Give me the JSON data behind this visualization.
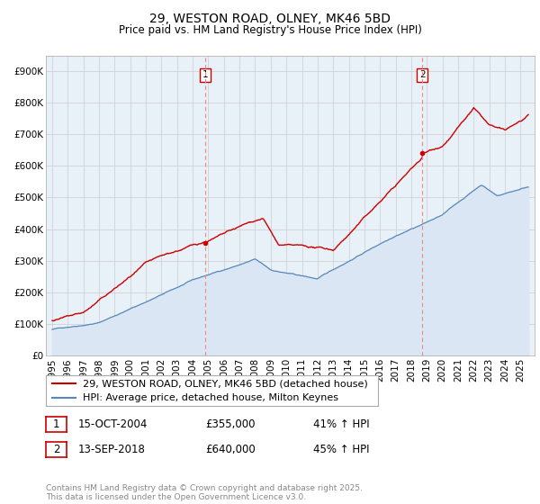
{
  "title": "29, WESTON ROAD, OLNEY, MK46 5BD",
  "subtitle": "Price paid vs. HM Land Registry's House Price Index (HPI)",
  "yticks": [
    0,
    100000,
    200000,
    300000,
    400000,
    500000,
    600000,
    700000,
    800000,
    900000
  ],
  "ytick_labels": [
    "£0",
    "£100K",
    "£200K",
    "£300K",
    "£400K",
    "£500K",
    "£600K",
    "£700K",
    "£800K",
    "£900K"
  ],
  "ylim": [
    0,
    950000
  ],
  "xlim_start": 1994.6,
  "xlim_end": 2025.9,
  "sale1_year": 2004.79,
  "sale1_price": 355000,
  "sale1_label": "1",
  "sale2_year": 2018.71,
  "sale2_price": 640000,
  "sale2_label": "2",
  "line_color_red": "#cc0000",
  "line_color_blue": "#5588bb",
  "fill_color_blue": "#dae6f3",
  "annotation_box_color": "#cc0000",
  "vline_color": "#ee8888",
  "grid_color": "#cccccc",
  "background_color": "#ffffff",
  "chart_bg_color": "#e8f0f8",
  "legend_label_red": "29, WESTON ROAD, OLNEY, MK46 5BD (detached house)",
  "legend_label_blue": "HPI: Average price, detached house, Milton Keynes",
  "sale1_date": "15-OCT-2004",
  "sale1_price_str": "£355,000",
  "sale1_hpi": "41% ↑ HPI",
  "sale2_date": "13-SEP-2018",
  "sale2_price_str": "£640,000",
  "sale2_hpi": "45% ↑ HPI",
  "footnote": "Contains HM Land Registry data © Crown copyright and database right 2025.\nThis data is licensed under the Open Government Licence v3.0.",
  "title_fontsize": 10,
  "subtitle_fontsize": 8.5,
  "tick_fontsize": 7.5,
  "legend_fontsize": 8,
  "footnote_fontsize": 6.5
}
